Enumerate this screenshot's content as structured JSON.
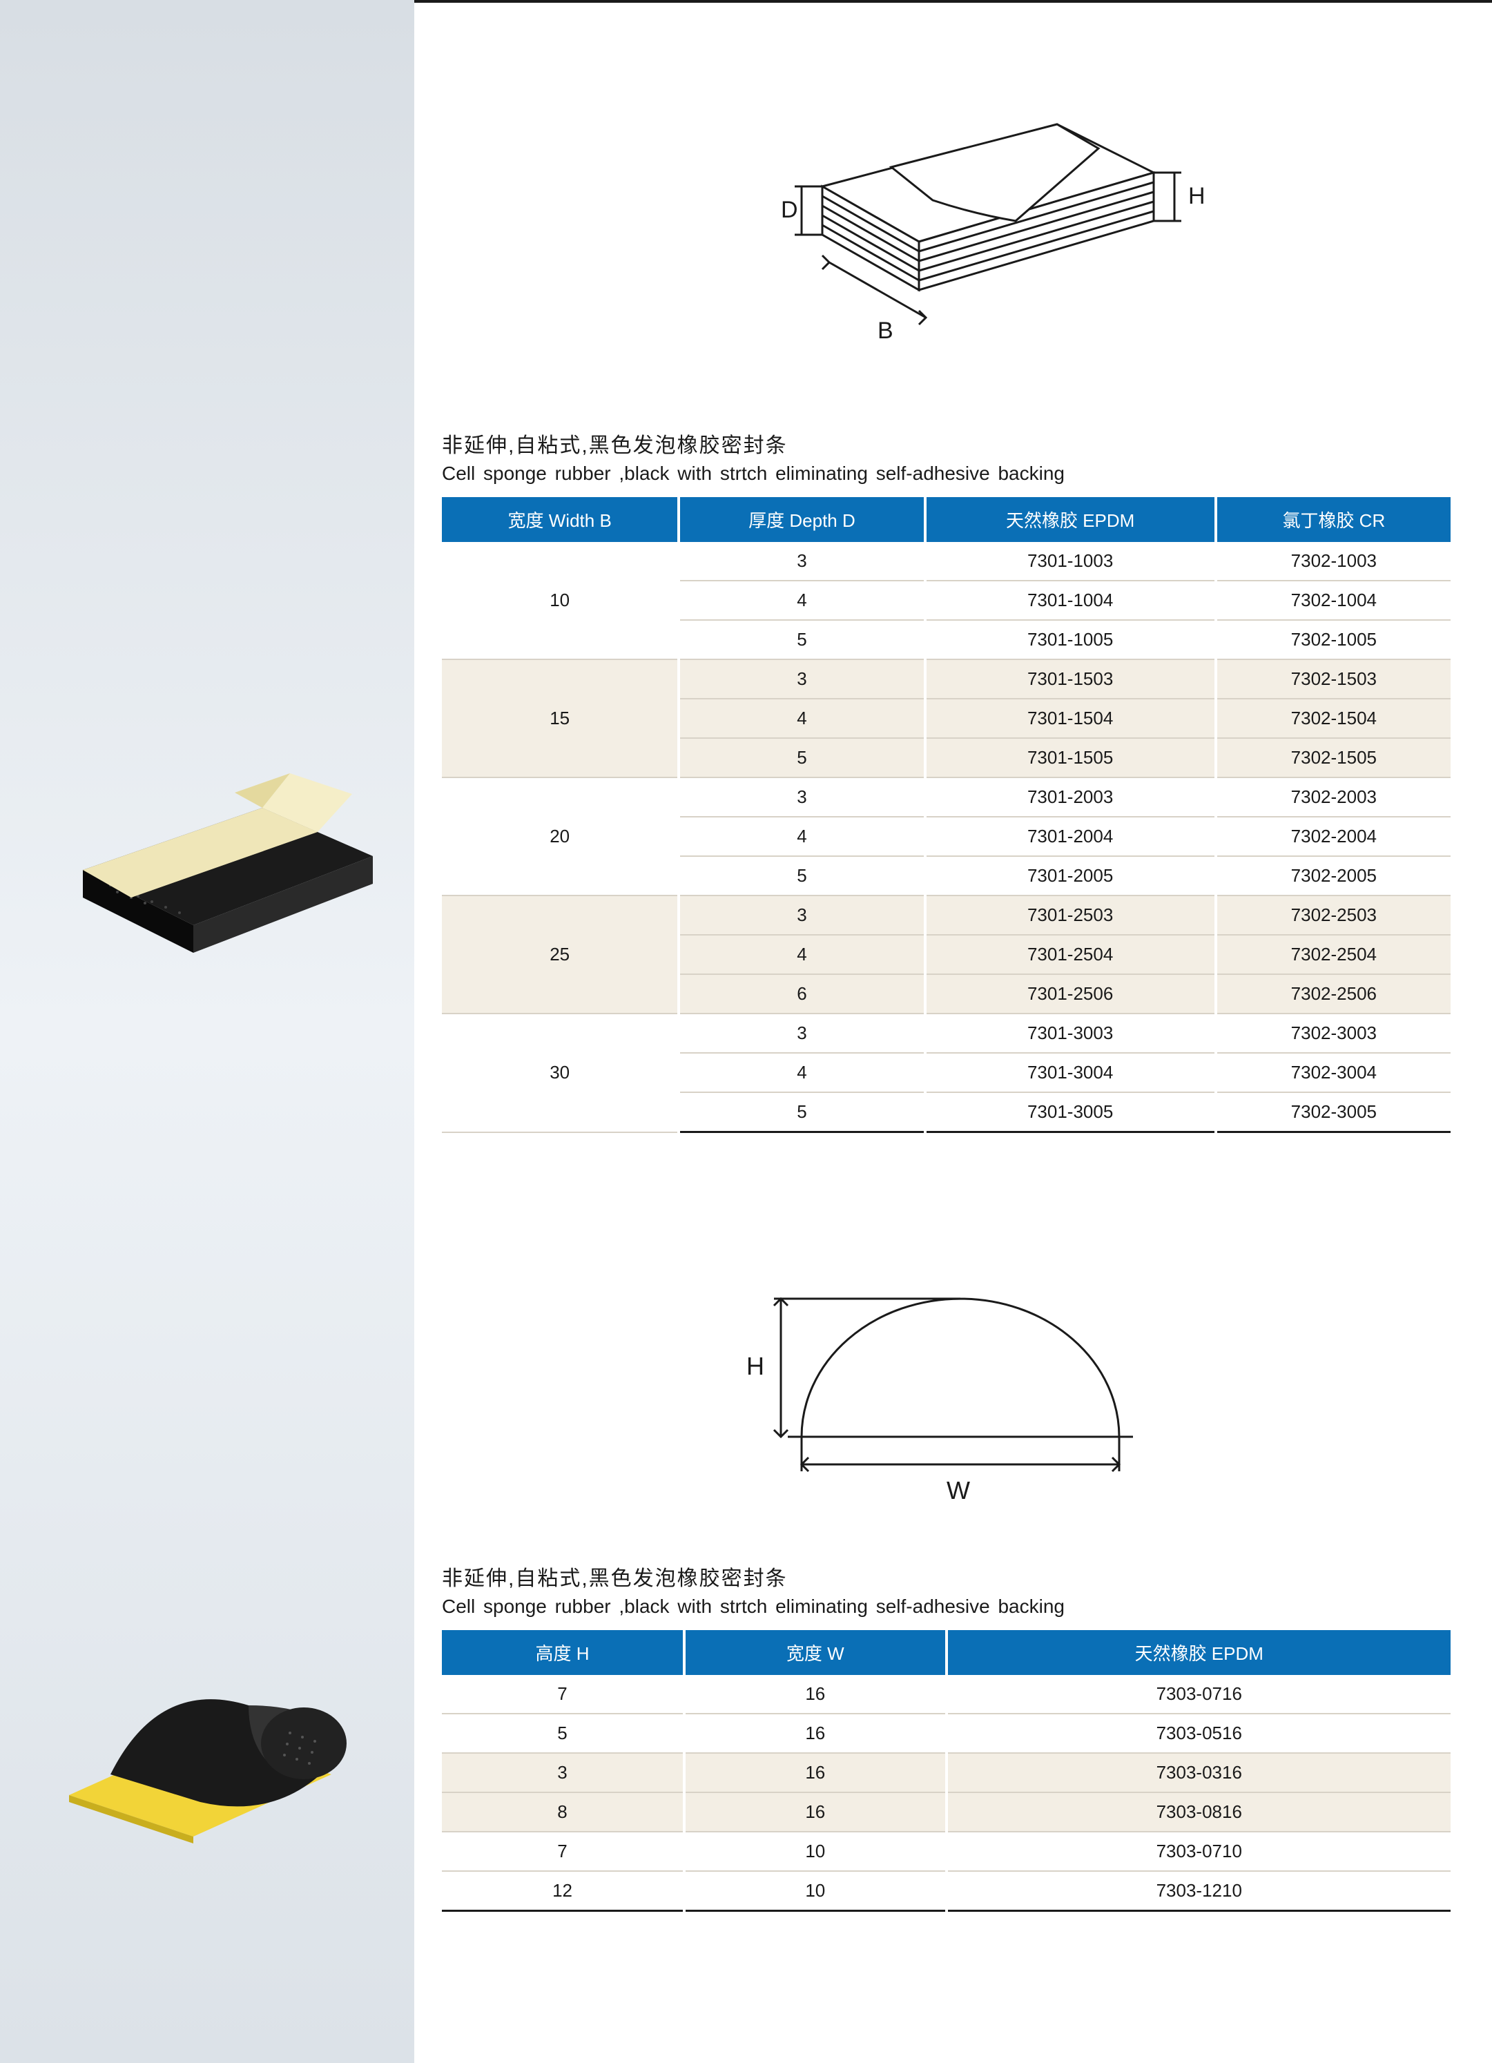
{
  "colors": {
    "header_bg": "#0a6fb6",
    "header_fg": "#ffffff",
    "tint_bg": "#f3eee4",
    "row_border": "#d8d2c7",
    "text": "#1a1a1a",
    "sidebar_grad_top": "#d8dee4",
    "sidebar_grad_mid": "#eef2f6",
    "sidebar_grad_bot": "#dce2e8",
    "page_bg": "#ffffff"
  },
  "typography": {
    "title_cn_fontsize": 30,
    "title_en_fontsize": 28,
    "table_fontsize": 26
  },
  "section1": {
    "title_cn": "非延伸,自粘式,黑色发泡橡胶密封条",
    "title_en": "Cell sponge rubber ,black with strtch eliminating self-adhesive backing",
    "diagram": {
      "type": "isometric-block",
      "labels": {
        "depth": "D",
        "width": "B",
        "height": "H"
      }
    },
    "headers": [
      "宽度 Width B",
      "厚度 Depth D",
      "天然橡胶 EPDM",
      "氯丁橡胶 CR"
    ],
    "groups": [
      {
        "width": "10",
        "tint": false,
        "rows": [
          {
            "d": "3",
            "epdm": "7301-1003",
            "cr": "7302-1003"
          },
          {
            "d": "4",
            "epdm": "7301-1004",
            "cr": "7302-1004"
          },
          {
            "d": "5",
            "epdm": "7301-1005",
            "cr": "7302-1005"
          }
        ]
      },
      {
        "width": "15",
        "tint": true,
        "rows": [
          {
            "d": "3",
            "epdm": "7301-1503",
            "cr": "7302-1503"
          },
          {
            "d": "4",
            "epdm": "7301-1504",
            "cr": "7302-1504"
          },
          {
            "d": "5",
            "epdm": "7301-1505",
            "cr": "7302-1505"
          }
        ]
      },
      {
        "width": "20",
        "tint": false,
        "rows": [
          {
            "d": "3",
            "epdm": "7301-2003",
            "cr": "7302-2003"
          },
          {
            "d": "4",
            "epdm": "7301-2004",
            "cr": "7302-2004"
          },
          {
            "d": "5",
            "epdm": "7301-2005",
            "cr": "7302-2005"
          }
        ]
      },
      {
        "width": "25",
        "tint": true,
        "rows": [
          {
            "d": "3",
            "epdm": "7301-2503",
            "cr": "7302-2503"
          },
          {
            "d": "4",
            "epdm": "7301-2504",
            "cr": "7302-2504"
          },
          {
            "d": "6",
            "epdm": "7301-2506",
            "cr": "7302-2506"
          }
        ]
      },
      {
        "width": "30",
        "tint": false,
        "rows": [
          {
            "d": "3",
            "epdm": "7301-3003",
            "cr": "7302-3003"
          },
          {
            "d": "4",
            "epdm": "7301-3004",
            "cr": "7302-3004"
          },
          {
            "d": "5",
            "epdm": "7301-3005",
            "cr": "7302-3005"
          }
        ]
      }
    ]
  },
  "section2": {
    "title_cn": "非延伸,自粘式,黑色发泡橡胶密封条",
    "title_en": "Cell sponge rubber ,black with strtch eliminating self-adhesive backing",
    "diagram": {
      "type": "semicircle-profile",
      "labels": {
        "height": "H",
        "width": "W"
      }
    },
    "headers": [
      "高度 H",
      "宽度 W",
      "天然橡胶 EPDM"
    ],
    "rows": [
      {
        "h": "7",
        "w": "16",
        "epdm": "7303-0716",
        "tint": false
      },
      {
        "h": "5",
        "w": "16",
        "epdm": "7303-0516",
        "tint": false
      },
      {
        "h": "3",
        "w": "16",
        "epdm": "7303-0316",
        "tint": true
      },
      {
        "h": "8",
        "w": "16",
        "epdm": "7303-0816",
        "tint": true
      },
      {
        "h": "7",
        "w": "10",
        "epdm": "7303-0710",
        "tint": false
      },
      {
        "h": "12",
        "w": "10",
        "epdm": "7303-1210",
        "tint": false
      }
    ]
  }
}
